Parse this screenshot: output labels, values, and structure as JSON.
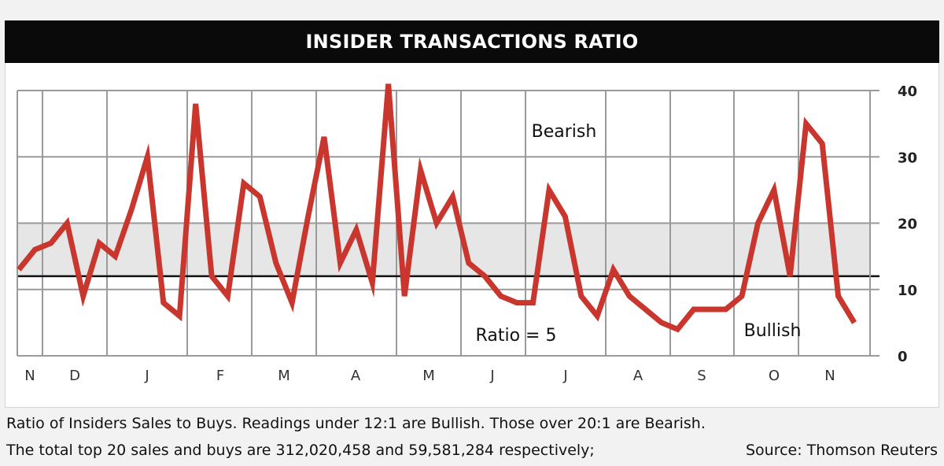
{
  "chart_data": {
    "type": "line",
    "title": "INSIDER TRANSACTIONS RATIO",
    "x_ticks": [
      "N",
      "D",
      "J",
      "F",
      "M",
      "A",
      "M",
      "J",
      "J",
      "A",
      "S",
      "O",
      "N"
    ],
    "ylim": [
      0,
      40
    ],
    "y_ticks": [
      "40",
      "30",
      "20",
      "10",
      "0"
    ],
    "grid": true,
    "band": {
      "from": 12,
      "to": 20
    },
    "reference_line": 12,
    "annotations": {
      "bearish": "Bearish",
      "bullish": "Bullish",
      "ratio": "Ratio = 5"
    },
    "line_color": "#c8362e",
    "series": [
      {
        "values": [
          13,
          16,
          17,
          20,
          9,
          17,
          15,
          22,
          30,
          8,
          6,
          38,
          12,
          9,
          26,
          24,
          14,
          8,
          21,
          33,
          14,
          19,
          11,
          41,
          9,
          28,
          20,
          24,
          14,
          12,
          9,
          8,
          8,
          25,
          21,
          9,
          6,
          13,
          9,
          7,
          5,
          4,
          7,
          7,
          7,
          9,
          20,
          25,
          12,
          35,
          32,
          9,
          5
        ]
      }
    ]
  },
  "captions": {
    "line1": "Ratio of Insiders Sales to Buys. Readings under 12:1 are Bullish. Those over 20:1 are Bearish.",
    "line2": "The total top 20 sales and buys are 312,020,458 and 59,581,284 respectively;",
    "source": "Source: Thomson Reuters"
  }
}
